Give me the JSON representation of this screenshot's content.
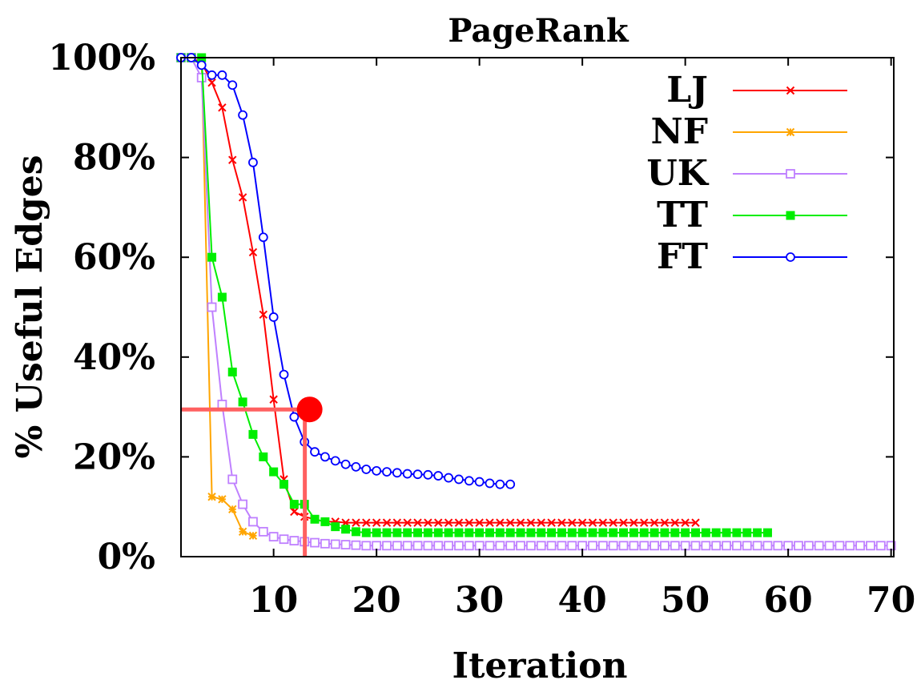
{
  "chart_data": {
    "type": "line",
    "title": "PageRank",
    "xlabel": "Iteration",
    "ylabel": "% Useful Edges",
    "xlim": [
      0,
      70
    ],
    "ylim": [
      0,
      100
    ],
    "x_ticks": [
      10,
      20,
      30,
      40,
      50,
      60,
      70
    ],
    "x_tick_labels": [
      "10",
      "20",
      "30",
      "40",
      "50",
      "60",
      "70"
    ],
    "y_ticks": [
      0,
      20,
      40,
      60,
      80,
      100
    ],
    "y_tick_labels": [
      "0%",
      "20%",
      "40%",
      "60%",
      "80%",
      "100%"
    ],
    "grid": false,
    "legend_position": "top-right",
    "series": [
      {
        "name": "LJ",
        "color": "#ff0000",
        "marker": "x",
        "x": [
          1,
          2,
          3,
          4,
          5,
          6,
          7,
          8,
          9,
          10,
          11,
          12,
          13,
          14,
          15,
          16,
          17,
          18,
          19,
          20,
          21,
          22,
          23,
          24,
          25,
          26,
          27,
          28,
          29,
          30,
          31,
          32,
          33,
          34,
          35,
          36,
          37,
          38,
          39,
          40,
          41,
          42,
          43,
          44,
          45,
          46,
          47,
          48,
          49,
          50,
          51
        ],
        "y": [
          100,
          100,
          99,
          95,
          90,
          79.5,
          72,
          61,
          48.5,
          31.5,
          15.5,
          9,
          8,
          7.5,
          7,
          7,
          6.8,
          6.8,
          6.8,
          6.8,
          6.8,
          6.8,
          6.8,
          6.8,
          6.8,
          6.8,
          6.8,
          6.8,
          6.8,
          6.8,
          6.8,
          6.8,
          6.8,
          6.8,
          6.8,
          6.8,
          6.8,
          6.8,
          6.8,
          6.8,
          6.8,
          6.8,
          6.8,
          6.8,
          6.8,
          6.8,
          6.8,
          6.8,
          6.8,
          6.8,
          6.8
        ]
      },
      {
        "name": "NF",
        "color": "#ffa500",
        "marker": "star",
        "x": [
          1,
          2,
          3,
          4,
          5,
          6,
          7,
          8
        ],
        "y": [
          100,
          100,
          100,
          12,
          11.5,
          9.5,
          5,
          4.2
        ]
      },
      {
        "name": "UK",
        "color": "#bf80ff",
        "marker": "square-open",
        "x": [
          1,
          2,
          3,
          4,
          5,
          6,
          7,
          8,
          9,
          10,
          11,
          12,
          13,
          14,
          15,
          16,
          17,
          18,
          19,
          20,
          21,
          22,
          23,
          24,
          25,
          26,
          27,
          28,
          29,
          30,
          31,
          32,
          33,
          34,
          35,
          36,
          37,
          38,
          39,
          40,
          41,
          42,
          43,
          44,
          45,
          46,
          47,
          48,
          49,
          50,
          51,
          52,
          53,
          54,
          55,
          56,
          57,
          58,
          59,
          60,
          61,
          62,
          63,
          64,
          65,
          66,
          67,
          68,
          69,
          70
        ],
        "y": [
          100,
          100,
          96,
          50,
          30.5,
          15.5,
          10.5,
          7,
          5,
          4,
          3.5,
          3.2,
          3,
          2.8,
          2.6,
          2.5,
          2.4,
          2.3,
          2.2,
          2.2,
          2.2,
          2.2,
          2.2,
          2.2,
          2.2,
          2.2,
          2.2,
          2.2,
          2.2,
          2.2,
          2.2,
          2.2,
          2.2,
          2.2,
          2.2,
          2.2,
          2.2,
          2.2,
          2.2,
          2.2,
          2.2,
          2.2,
          2.2,
          2.2,
          2.2,
          2.2,
          2.2,
          2.2,
          2.2,
          2.2,
          2.2,
          2.2,
          2.2,
          2.2,
          2.2,
          2.2,
          2.2,
          2.2,
          2.2,
          2.2,
          2.2,
          2.2,
          2.2,
          2.2,
          2.2,
          2.2,
          2.2,
          2.2,
          2.2,
          2.2
        ]
      },
      {
        "name": "TT",
        "color": "#00ee00",
        "marker": "square-filled",
        "x": [
          1,
          2,
          3,
          4,
          5,
          6,
          7,
          8,
          9,
          10,
          11,
          12,
          13,
          14,
          15,
          16,
          17,
          18,
          19,
          20,
          21,
          22,
          23,
          24,
          25,
          26,
          27,
          28,
          29,
          30,
          31,
          32,
          33,
          34,
          35,
          36,
          37,
          38,
          39,
          40,
          41,
          42,
          43,
          44,
          45,
          46,
          47,
          48,
          49,
          50,
          51,
          52,
          53,
          54,
          55,
          56,
          57,
          58
        ],
        "y": [
          100,
          100,
          100,
          60,
          52,
          37,
          31,
          24.5,
          20,
          17,
          14.5,
          10.5,
          10.5,
          7.5,
          7,
          6,
          5.5,
          5,
          4.8,
          4.8,
          4.8,
          4.8,
          4.8,
          4.8,
          4.8,
          4.8,
          4.8,
          4.8,
          4.8,
          4.8,
          4.8,
          4.8,
          4.8,
          4.8,
          4.8,
          4.8,
          4.8,
          4.8,
          4.8,
          4.8,
          4.8,
          4.8,
          4.8,
          4.8,
          4.8,
          4.8,
          4.8,
          4.8,
          4.8,
          4.8,
          4.8,
          4.8,
          4.8,
          4.8,
          4.8,
          4.8,
          4.8,
          4.8
        ]
      },
      {
        "name": "FT",
        "color": "#0000ff",
        "marker": "circle-open",
        "x": [
          1,
          2,
          3,
          4,
          5,
          6,
          7,
          8,
          9,
          10,
          11,
          12,
          13,
          14,
          15,
          16,
          17,
          18,
          19,
          20,
          21,
          22,
          23,
          24,
          25,
          26,
          27,
          28,
          29,
          30,
          31,
          32,
          33
        ],
        "y": [
          100,
          100,
          98.5,
          96.5,
          96.5,
          94.5,
          88.5,
          79,
          64,
          48,
          36.5,
          28,
          23,
          21,
          20,
          19.2,
          18.5,
          18,
          17.5,
          17.2,
          17,
          16.8,
          16.6,
          16.5,
          16.4,
          16.2,
          15.8,
          15.5,
          15.2,
          15,
          14.7,
          14.5,
          14.5
        ]
      }
    ],
    "annotation": {
      "color": "#ff0000",
      "crosshair_color": "#ff6060",
      "x": 13.5,
      "y": 29.5
    }
  }
}
